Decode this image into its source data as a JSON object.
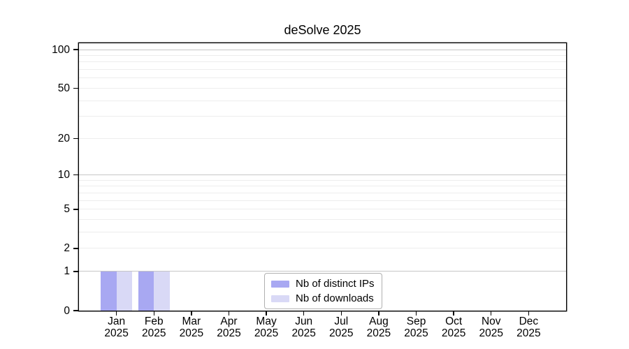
{
  "figure": {
    "background": "#ffffff"
  },
  "chart_data": {
    "type": "bar",
    "title": "deSolve 2025",
    "xlabel": "",
    "ylabel": "",
    "yscale": "log1p",
    "ylim": [
      0,
      112
    ],
    "yticks": [
      0,
      1,
      2,
      5,
      10,
      20,
      50,
      100
    ],
    "grid_major": [
      1,
      10,
      100
    ],
    "grid_minor": [
      2,
      3,
      4,
      5,
      6,
      7,
      8,
      9,
      20,
      30,
      40,
      50,
      60,
      70,
      80,
      90
    ],
    "legend_position": "bottom-center",
    "categories": [
      {
        "label": "Jan",
        "sublabel": "2025"
      },
      {
        "label": "Feb",
        "sublabel": "2025"
      },
      {
        "label": "Mar",
        "sublabel": "2025"
      },
      {
        "label": "Apr",
        "sublabel": "2025"
      },
      {
        "label": "May",
        "sublabel": "2025"
      },
      {
        "label": "Jun",
        "sublabel": "2025"
      },
      {
        "label": "Jul",
        "sublabel": "2025"
      },
      {
        "label": "Aug",
        "sublabel": "2025"
      },
      {
        "label": "Sep",
        "sublabel": "2025"
      },
      {
        "label": "Oct",
        "sublabel": "2025"
      },
      {
        "label": "Nov",
        "sublabel": "2025"
      },
      {
        "label": "Dec",
        "sublabel": "2025"
      }
    ],
    "series": [
      {
        "name": "Nb of distinct IPs",
        "color": "#a8a8f2",
        "values": [
          1,
          1,
          0,
          0,
          0,
          0,
          0,
          0,
          0,
          0,
          0,
          0
        ]
      },
      {
        "name": "Nb of downloads",
        "color": "#d9d9f6",
        "values": [
          1,
          1,
          0,
          0,
          0,
          0,
          0,
          0,
          0,
          0,
          0,
          0
        ]
      }
    ]
  },
  "colors": {
    "grid_major": "#c6c6c6",
    "grid_minor": "#ededed",
    "frame": "#000000",
    "text": "#000000",
    "legend_border": "#b0b0b0",
    "legend_bg": "#ffffff"
  }
}
